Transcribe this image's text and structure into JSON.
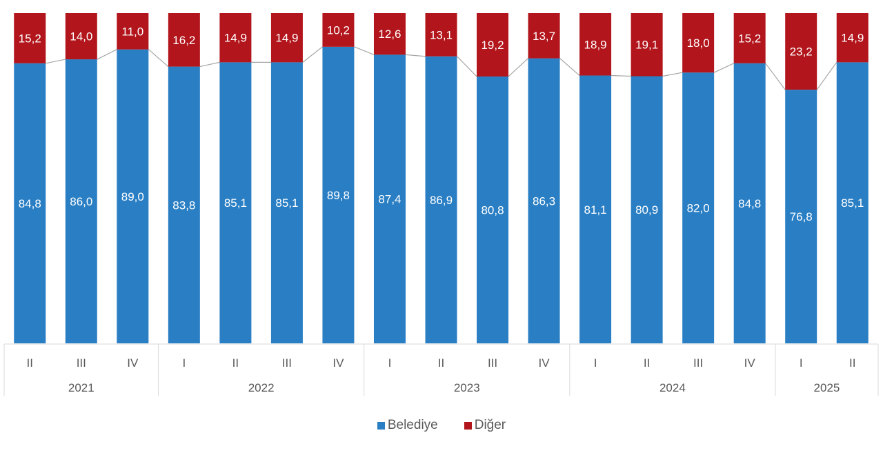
{
  "chart_data": {
    "type": "bar",
    "stacked": true,
    "title": "",
    "xlabel": "",
    "ylabel": "",
    "ylim": [
      0,
      100
    ],
    "categories": [
      "II",
      "III",
      "IV",
      "I",
      "II",
      "III",
      "IV",
      "I",
      "II",
      "III",
      "IV",
      "I",
      "II",
      "III",
      "IV",
      "I",
      "II"
    ],
    "groups": [
      {
        "label": "2021",
        "count": 3
      },
      {
        "label": "2022",
        "count": 4
      },
      {
        "label": "2023",
        "count": 4
      },
      {
        "label": "2024",
        "count": 4
      },
      {
        "label": "2025",
        "count": 2
      }
    ],
    "series": [
      {
        "name": "Belediye",
        "color": "#2a7fc4",
        "values": [
          84.8,
          86.0,
          89.0,
          83.8,
          85.1,
          85.1,
          89.8,
          87.4,
          86.9,
          80.8,
          86.3,
          81.1,
          80.9,
          82.0,
          84.8,
          76.8,
          85.1
        ],
        "labels": [
          "84,8",
          "86,0",
          "89,0",
          "83,8",
          "85,1",
          "85,1",
          "89,8",
          "87,4",
          "86,9",
          "80,8",
          "86,3",
          "81,1",
          "80,9",
          "82,0",
          "84,8",
          "76,8",
          "85,1"
        ]
      },
      {
        "name": "Diğer",
        "color": "#b2151b",
        "values": [
          15.2,
          14.0,
          11.0,
          16.2,
          14.9,
          14.9,
          10.2,
          12.6,
          13.1,
          19.2,
          13.7,
          18.9,
          19.1,
          18.0,
          15.2,
          23.2,
          14.9
        ],
        "labels": [
          "15,2",
          "14,0",
          "11,0",
          "16,2",
          "14,9",
          "14,9",
          "10,2",
          "12,6",
          "13,1",
          "19,2",
          "13,7",
          "18,9",
          "19,1",
          "18,0",
          "15,2",
          "23,2",
          "14,9"
        ]
      }
    ],
    "legend_position": "bottom",
    "grid": false,
    "series_lines": true
  }
}
